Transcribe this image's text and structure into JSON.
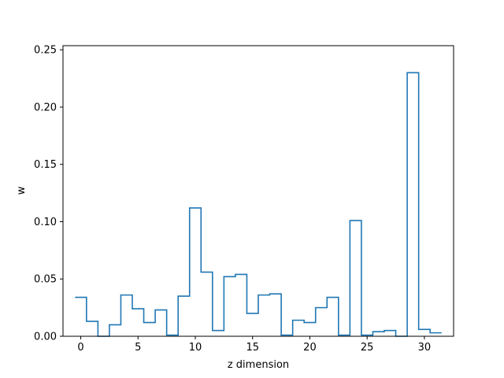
{
  "chart_data": {
    "type": "step",
    "title": "",
    "xlabel": "z dimension",
    "ylabel": "w",
    "x": [
      0,
      1,
      2,
      3,
      4,
      5,
      6,
      7,
      8,
      9,
      10,
      11,
      12,
      13,
      14,
      15,
      16,
      17,
      18,
      19,
      20,
      21,
      22,
      23,
      24,
      25,
      26,
      27,
      28,
      29,
      30,
      31
    ],
    "series": [
      {
        "values": [
          0.034,
          0.013,
          0.0,
          0.01,
          0.036,
          0.024,
          0.012,
          0.023,
          0.001,
          0.035,
          0.112,
          0.056,
          0.005,
          0.052,
          0.054,
          0.02,
          0.036,
          0.037,
          0.001,
          0.014,
          0.012,
          0.025,
          0.034,
          0.001,
          0.101,
          0.001,
          0.004,
          0.005,
          0.0,
          0.23,
          0.006,
          0.003
        ],
        "color": "#1f77b4"
      }
    ],
    "xlim": [
      -1.55,
      32.55
    ],
    "ylim": [
      0.0,
      0.2536
    ],
    "x_ticks": [
      0,
      5,
      10,
      15,
      20,
      25,
      30
    ],
    "x_tick_labels": [
      "0",
      "5",
      "10",
      "15",
      "20",
      "25",
      "30"
    ],
    "y_ticks": [
      0.0,
      0.05,
      0.1,
      0.15,
      0.2,
      0.25
    ],
    "y_tick_labels": [
      "0.00",
      "0.05",
      "0.10",
      "0.15",
      "0.20",
      "0.25"
    ],
    "grid": false,
    "legend": "none"
  }
}
